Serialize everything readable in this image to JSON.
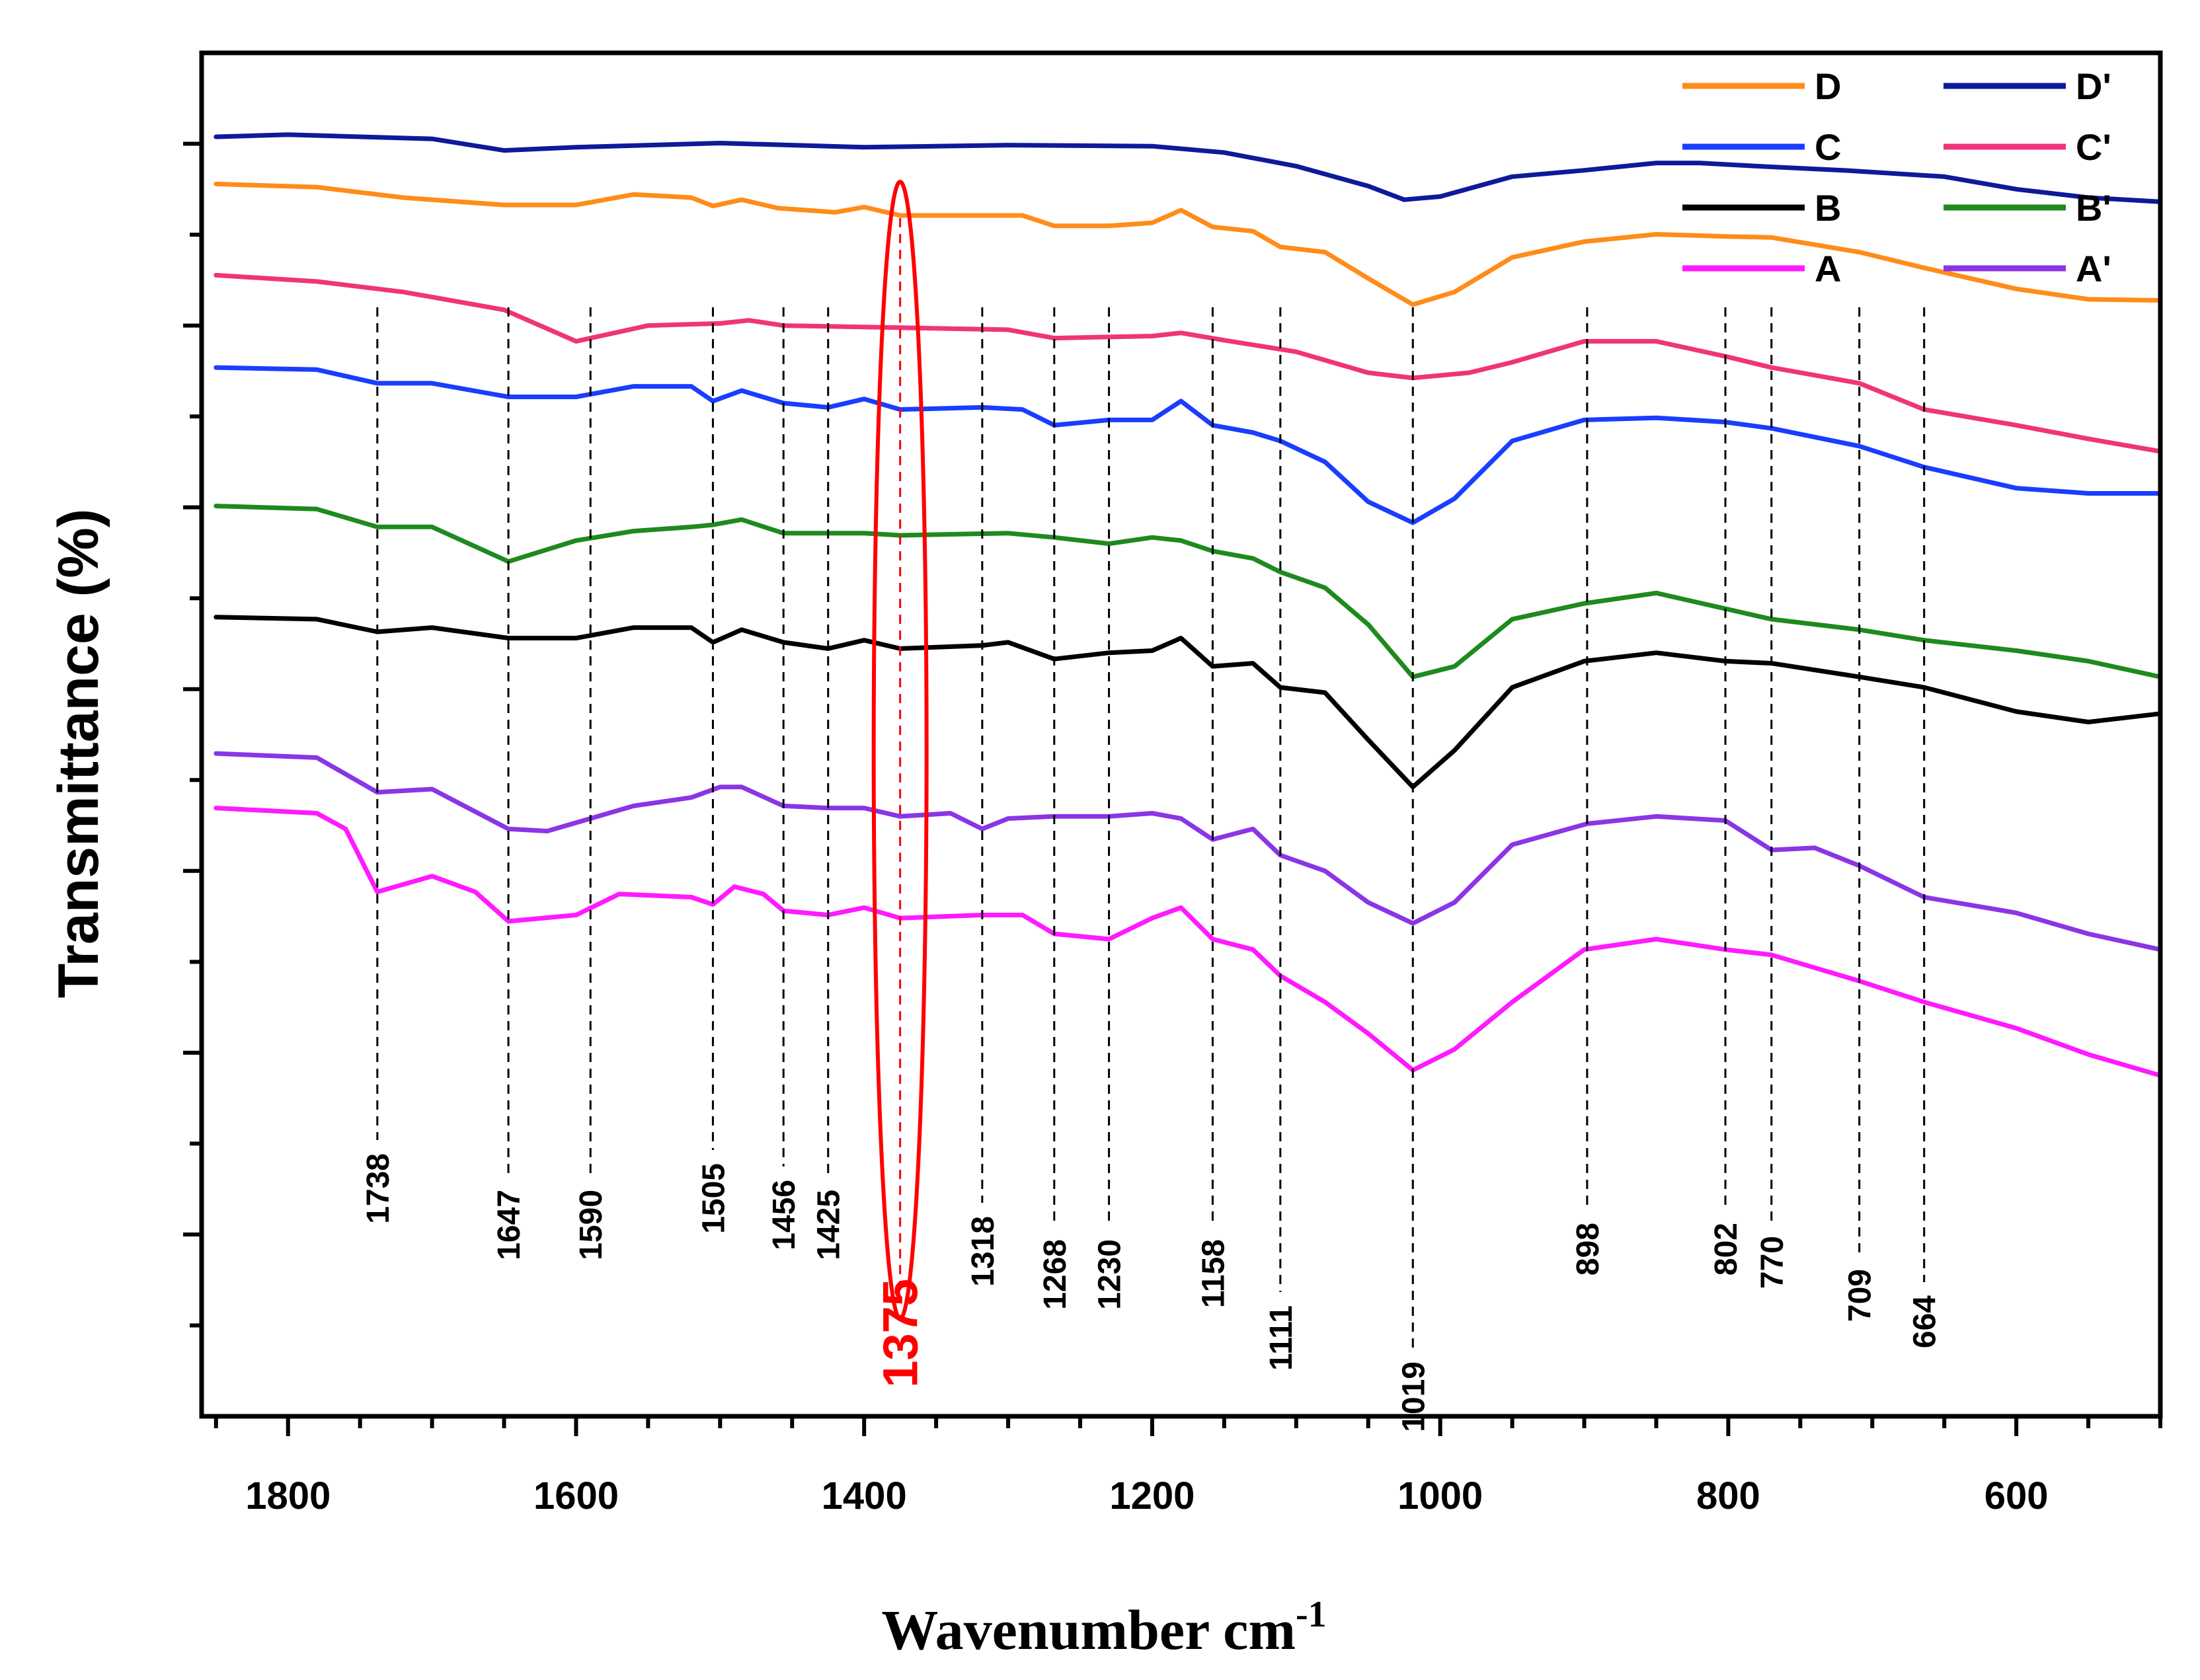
{
  "chart_data": {
    "type": "line",
    "title": "",
    "xlabel": "Wavenumber cm",
    "xlabel_sup": "-1",
    "ylabel": "Transmittance (%)",
    "xlim": [
      1860,
      500
    ],
    "x_reversed": true,
    "ylim": [
      0,
      13
    ],
    "y_tick_labels": "none",
    "x_ticks": [
      1800,
      1600,
      1400,
      1200,
      1000,
      800,
      600
    ],
    "x_tick_labels": [
      "1800",
      "1600",
      "1400",
      "1200",
      "1000",
      "800",
      "600"
    ],
    "legend_position": "top-right",
    "highlight": {
      "wavenumber": 1375,
      "label": "1375",
      "color": "#ff0000"
    },
    "peak_labels": [
      {
        "x": 1738,
        "label": "1738"
      },
      {
        "x": 1647,
        "label": "1647"
      },
      {
        "x": 1590,
        "label": "1590"
      },
      {
        "x": 1505,
        "label": "1505"
      },
      {
        "x": 1456,
        "label": "1456"
      },
      {
        "x": 1425,
        "label": "1425"
      },
      {
        "x": 1318,
        "label": "1318"
      },
      {
        "x": 1268,
        "label": "1268"
      },
      {
        "x": 1230,
        "label": "1230"
      },
      {
        "x": 1158,
        "label": "1158"
      },
      {
        "x": 1111,
        "label": "1111"
      },
      {
        "x": 1019,
        "label": "1019"
      },
      {
        "x": 898,
        "label": "898"
      },
      {
        "x": 802,
        "label": "802"
      },
      {
        "x": 770,
        "label": "770"
      },
      {
        "x": 709,
        "label": "709"
      },
      {
        "x": 664,
        "label": "664"
      }
    ],
    "series": [
      {
        "name": "D'",
        "color": "#0d1a9a",
        "points": [
          [
            1850,
            12.2
          ],
          [
            1800,
            12.22
          ],
          [
            1700,
            12.18
          ],
          [
            1650,
            12.07
          ],
          [
            1600,
            12.1
          ],
          [
            1500,
            12.14
          ],
          [
            1400,
            12.1
          ],
          [
            1300,
            12.12
          ],
          [
            1200,
            12.11
          ],
          [
            1150,
            12.05
          ],
          [
            1100,
            11.92
          ],
          [
            1050,
            11.73
          ],
          [
            1025,
            11.6
          ],
          [
            1000,
            11.63
          ],
          [
            950,
            11.82
          ],
          [
            900,
            11.88
          ],
          [
            850,
            11.95
          ],
          [
            820,
            11.95
          ],
          [
            780,
            11.92
          ],
          [
            720,
            11.88
          ],
          [
            650,
            11.82
          ],
          [
            600,
            11.7
          ],
          [
            550,
            11.62
          ],
          [
            500,
            11.58
          ]
        ]
      },
      {
        "name": "D",
        "color": "#ff8c1a",
        "points": [
          [
            1850,
            11.75
          ],
          [
            1780,
            11.72
          ],
          [
            1720,
            11.62
          ],
          [
            1650,
            11.55
          ],
          [
            1600,
            11.55
          ],
          [
            1560,
            11.65
          ],
          [
            1520,
            11.62
          ],
          [
            1505,
            11.54
          ],
          [
            1485,
            11.6
          ],
          [
            1460,
            11.52
          ],
          [
            1420,
            11.48
          ],
          [
            1400,
            11.53
          ],
          [
            1375,
            11.45
          ],
          [
            1318,
            11.45
          ],
          [
            1290,
            11.45
          ],
          [
            1268,
            11.35
          ],
          [
            1230,
            11.35
          ],
          [
            1200,
            11.38
          ],
          [
            1180,
            11.5
          ],
          [
            1158,
            11.34
          ],
          [
            1130,
            11.3
          ],
          [
            1111,
            11.15
          ],
          [
            1080,
            11.1
          ],
          [
            1050,
            10.85
          ],
          [
            1019,
            10.6
          ],
          [
            990,
            10.72
          ],
          [
            950,
            11.05
          ],
          [
            900,
            11.2
          ],
          [
            850,
            11.27
          ],
          [
            802,
            11.25
          ],
          [
            770,
            11.24
          ],
          [
            709,
            11.1
          ],
          [
            664,
            10.95
          ],
          [
            600,
            10.75
          ],
          [
            550,
            10.65
          ],
          [
            500,
            10.64
          ]
        ]
      },
      {
        "name": "C'",
        "color": "#f0347a",
        "points": [
          [
            1850,
            10.88
          ],
          [
            1780,
            10.82
          ],
          [
            1720,
            10.72
          ],
          [
            1650,
            10.55
          ],
          [
            1600,
            10.25
          ],
          [
            1550,
            10.4
          ],
          [
            1500,
            10.42
          ],
          [
            1480,
            10.45
          ],
          [
            1456,
            10.4
          ],
          [
            1375,
            10.38
          ],
          [
            1300,
            10.36
          ],
          [
            1268,
            10.28
          ],
          [
            1200,
            10.3
          ],
          [
            1180,
            10.33
          ],
          [
            1150,
            10.26
          ],
          [
            1100,
            10.15
          ],
          [
            1050,
            9.95
          ],
          [
            1019,
            9.9
          ],
          [
            980,
            9.95
          ],
          [
            950,
            10.05
          ],
          [
            900,
            10.25
          ],
          [
            850,
            10.25
          ],
          [
            800,
            10.1
          ],
          [
            770,
            10.0
          ],
          [
            709,
            9.85
          ],
          [
            664,
            9.6
          ],
          [
            600,
            9.45
          ],
          [
            550,
            9.32
          ],
          [
            500,
            9.2
          ]
        ]
      },
      {
        "name": "C",
        "color": "#1a3dff",
        "points": [
          [
            1850,
            10.0
          ],
          [
            1780,
            9.98
          ],
          [
            1738,
            9.85
          ],
          [
            1700,
            9.85
          ],
          [
            1647,
            9.72
          ],
          [
            1600,
            9.72
          ],
          [
            1560,
            9.82
          ],
          [
            1520,
            9.82
          ],
          [
            1505,
            9.68
          ],
          [
            1485,
            9.78
          ],
          [
            1456,
            9.66
          ],
          [
            1425,
            9.62
          ],
          [
            1400,
            9.7
          ],
          [
            1375,
            9.6
          ],
          [
            1318,
            9.62
          ],
          [
            1290,
            9.6
          ],
          [
            1268,
            9.45
          ],
          [
            1230,
            9.5
          ],
          [
            1200,
            9.5
          ],
          [
            1180,
            9.68
          ],
          [
            1158,
            9.45
          ],
          [
            1130,
            9.38
          ],
          [
            1111,
            9.3
          ],
          [
            1080,
            9.1
          ],
          [
            1050,
            8.72
          ],
          [
            1019,
            8.52
          ],
          [
            990,
            8.75
          ],
          [
            950,
            9.3
          ],
          [
            900,
            9.5
          ],
          [
            850,
            9.52
          ],
          [
            802,
            9.48
          ],
          [
            770,
            9.42
          ],
          [
            709,
            9.25
          ],
          [
            664,
            9.05
          ],
          [
            600,
            8.85
          ],
          [
            550,
            8.8
          ],
          [
            500,
            8.8
          ]
        ]
      },
      {
        "name": "B'",
        "color": "#1e8a1e",
        "points": [
          [
            1850,
            8.68
          ],
          [
            1780,
            8.65
          ],
          [
            1738,
            8.48
          ],
          [
            1700,
            8.48
          ],
          [
            1647,
            8.15
          ],
          [
            1600,
            8.35
          ],
          [
            1560,
            8.44
          ],
          [
            1520,
            8.48
          ],
          [
            1505,
            8.5
          ],
          [
            1485,
            8.55
          ],
          [
            1456,
            8.42
          ],
          [
            1400,
            8.42
          ],
          [
            1375,
            8.4
          ],
          [
            1300,
            8.42
          ],
          [
            1268,
            8.38
          ],
          [
            1230,
            8.32
          ],
          [
            1200,
            8.38
          ],
          [
            1180,
            8.35
          ],
          [
            1158,
            8.25
          ],
          [
            1130,
            8.18
          ],
          [
            1111,
            8.05
          ],
          [
            1080,
            7.9
          ],
          [
            1050,
            7.55
          ],
          [
            1019,
            7.05
          ],
          [
            990,
            7.15
          ],
          [
            950,
            7.6
          ],
          [
            900,
            7.75
          ],
          [
            850,
            7.85
          ],
          [
            802,
            7.7
          ],
          [
            770,
            7.6
          ],
          [
            709,
            7.5
          ],
          [
            664,
            7.4
          ],
          [
            600,
            7.3
          ],
          [
            550,
            7.2
          ],
          [
            500,
            7.05
          ]
        ]
      },
      {
        "name": "B",
        "color": "#000000",
        "points": [
          [
            1850,
            7.62
          ],
          [
            1780,
            7.6
          ],
          [
            1738,
            7.48
          ],
          [
            1700,
            7.52
          ],
          [
            1647,
            7.42
          ],
          [
            1600,
            7.42
          ],
          [
            1560,
            7.52
          ],
          [
            1520,
            7.52
          ],
          [
            1505,
            7.38
          ],
          [
            1485,
            7.5
          ],
          [
            1456,
            7.38
          ],
          [
            1425,
            7.32
          ],
          [
            1400,
            7.4
          ],
          [
            1375,
            7.32
          ],
          [
            1318,
            7.35
          ],
          [
            1300,
            7.38
          ],
          [
            1268,
            7.22
          ],
          [
            1230,
            7.28
          ],
          [
            1200,
            7.3
          ],
          [
            1180,
            7.42
          ],
          [
            1158,
            7.15
          ],
          [
            1130,
            7.18
          ],
          [
            1111,
            6.95
          ],
          [
            1080,
            6.9
          ],
          [
            1050,
            6.45
          ],
          [
            1019,
            6.0
          ],
          [
            990,
            6.35
          ],
          [
            950,
            6.95
          ],
          [
            900,
            7.2
          ],
          [
            850,
            7.28
          ],
          [
            802,
            7.2
          ],
          [
            770,
            7.18
          ],
          [
            709,
            7.05
          ],
          [
            664,
            6.95
          ],
          [
            600,
            6.72
          ],
          [
            550,
            6.62
          ],
          [
            500,
            6.7
          ]
        ]
      },
      {
        "name": "A'",
        "color": "#8a35e6",
        "points": [
          [
            1850,
            6.32
          ],
          [
            1780,
            6.28
          ],
          [
            1738,
            5.95
          ],
          [
            1700,
            5.98
          ],
          [
            1647,
            5.6
          ],
          [
            1620,
            5.58
          ],
          [
            1590,
            5.7
          ],
          [
            1560,
            5.82
          ],
          [
            1520,
            5.9
          ],
          [
            1500,
            6.0
          ],
          [
            1485,
            6.0
          ],
          [
            1456,
            5.82
          ],
          [
            1425,
            5.8
          ],
          [
            1400,
            5.8
          ],
          [
            1375,
            5.72
          ],
          [
            1340,
            5.75
          ],
          [
            1318,
            5.6
          ],
          [
            1300,
            5.7
          ],
          [
            1268,
            5.72
          ],
          [
            1230,
            5.72
          ],
          [
            1200,
            5.75
          ],
          [
            1180,
            5.7
          ],
          [
            1158,
            5.5
          ],
          [
            1130,
            5.6
          ],
          [
            1111,
            5.35
          ],
          [
            1080,
            5.2
          ],
          [
            1050,
            4.9
          ],
          [
            1019,
            4.7
          ],
          [
            990,
            4.9
          ],
          [
            950,
            5.45
          ],
          [
            898,
            5.65
          ],
          [
            850,
            5.72
          ],
          [
            802,
            5.68
          ],
          [
            770,
            5.4
          ],
          [
            740,
            5.42
          ],
          [
            709,
            5.25
          ],
          [
            664,
            4.95
          ],
          [
            600,
            4.8
          ],
          [
            550,
            4.6
          ],
          [
            500,
            4.45
          ]
        ]
      },
      {
        "name": "A",
        "color": "#ff1aff",
        "points": [
          [
            1850,
            5.8
          ],
          [
            1780,
            5.75
          ],
          [
            1760,
            5.6
          ],
          [
            1738,
            5.0
          ],
          [
            1700,
            5.15
          ],
          [
            1670,
            5.0
          ],
          [
            1647,
            4.72
          ],
          [
            1600,
            4.78
          ],
          [
            1570,
            4.98
          ],
          [
            1520,
            4.95
          ],
          [
            1505,
            4.88
          ],
          [
            1490,
            5.05
          ],
          [
            1470,
            4.98
          ],
          [
            1456,
            4.82
          ],
          [
            1425,
            4.78
          ],
          [
            1400,
            4.85
          ],
          [
            1375,
            4.75
          ],
          [
            1318,
            4.78
          ],
          [
            1290,
            4.78
          ],
          [
            1268,
            4.6
          ],
          [
            1230,
            4.55
          ],
          [
            1200,
            4.75
          ],
          [
            1180,
            4.85
          ],
          [
            1158,
            4.55
          ],
          [
            1130,
            4.45
          ],
          [
            1111,
            4.2
          ],
          [
            1080,
            3.95
          ],
          [
            1050,
            3.65
          ],
          [
            1019,
            3.3
          ],
          [
            990,
            3.5
          ],
          [
            950,
            3.95
          ],
          [
            900,
            4.45
          ],
          [
            850,
            4.55
          ],
          [
            802,
            4.45
          ],
          [
            770,
            4.4
          ],
          [
            709,
            4.15
          ],
          [
            664,
            3.95
          ],
          [
            600,
            3.7
          ],
          [
            550,
            3.45
          ],
          [
            500,
            3.25
          ]
        ]
      }
    ],
    "legend": [
      {
        "name": "D",
        "label": "D",
        "color": "#ff8c1a"
      },
      {
        "name": "D'",
        "label": "D'",
        "color": "#0d1a9a"
      },
      {
        "name": "C",
        "label": "C",
        "color": "#1a3dff"
      },
      {
        "name": "C'",
        "label": "C'",
        "color": "#f0347a"
      },
      {
        "name": "B",
        "label": "B",
        "color": "#000000"
      },
      {
        "name": "B'",
        "label": "B'",
        "color": "#1e8a1e"
      },
      {
        "name": "A",
        "label": "A",
        "color": "#ff1aff"
      },
      {
        "name": "A'",
        "label": "A'",
        "color": "#8a35e6"
      }
    ]
  }
}
